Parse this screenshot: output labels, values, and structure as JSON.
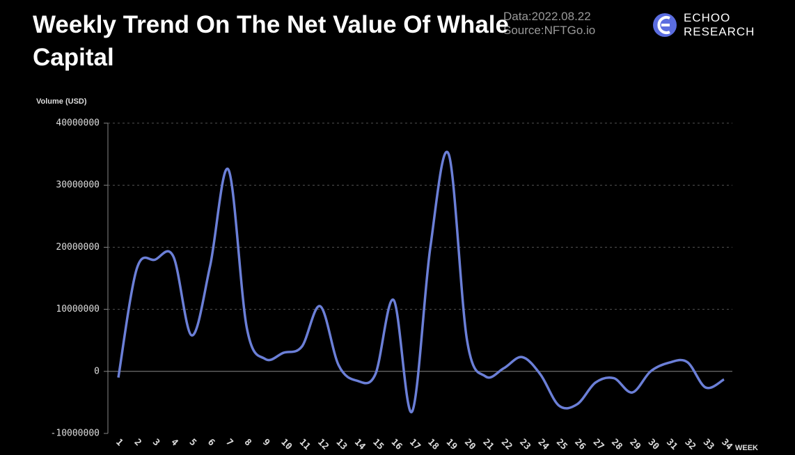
{
  "chart_data": {
    "type": "line",
    "title": "Weekly Trend On The Net Value Of Whale Capital",
    "y_label": "Volume  (USD)",
    "x_label": "WEEK",
    "categories": [
      "1",
      "2",
      "3",
      "4",
      "5",
      "6",
      "7",
      "8",
      "9",
      "10",
      "11",
      "12",
      "13",
      "14",
      "15",
      "16",
      "17",
      "18",
      "19",
      "20",
      "21",
      "22",
      "23",
      "24",
      "25",
      "26",
      "27",
      "28",
      "29",
      "30",
      "31",
      "32",
      "33",
      "34"
    ],
    "series": [
      {
        "name": "Net Value",
        "color": "#6b7fd7",
        "values": [
          -1000000,
          16500000,
          18000000,
          18500000,
          5800000,
          17000000,
          32500000,
          7000000,
          2000000,
          3000000,
          4000000,
          10500000,
          1000000,
          -1500000,
          -500000,
          11500000,
          -6500000,
          20000000,
          35000000,
          5000000,
          -800000,
          500000,
          2300000,
          -500000,
          -5500000,
          -5300000,
          -1800000,
          -1100000,
          -3400000,
          0,
          1400000,
          1500000,
          -2600000,
          -1300000
        ]
      }
    ],
    "ylim": [
      -10000000,
      40000000
    ],
    "yticks": [
      -10000000,
      0,
      10000000,
      20000000,
      30000000,
      40000000
    ],
    "grid": true
  },
  "notes": [
    "Data:2022.08.22",
    "Source:NFTGo.io"
  ],
  "brand": [
    "ECHOO",
    "RESEARCH"
  ]
}
